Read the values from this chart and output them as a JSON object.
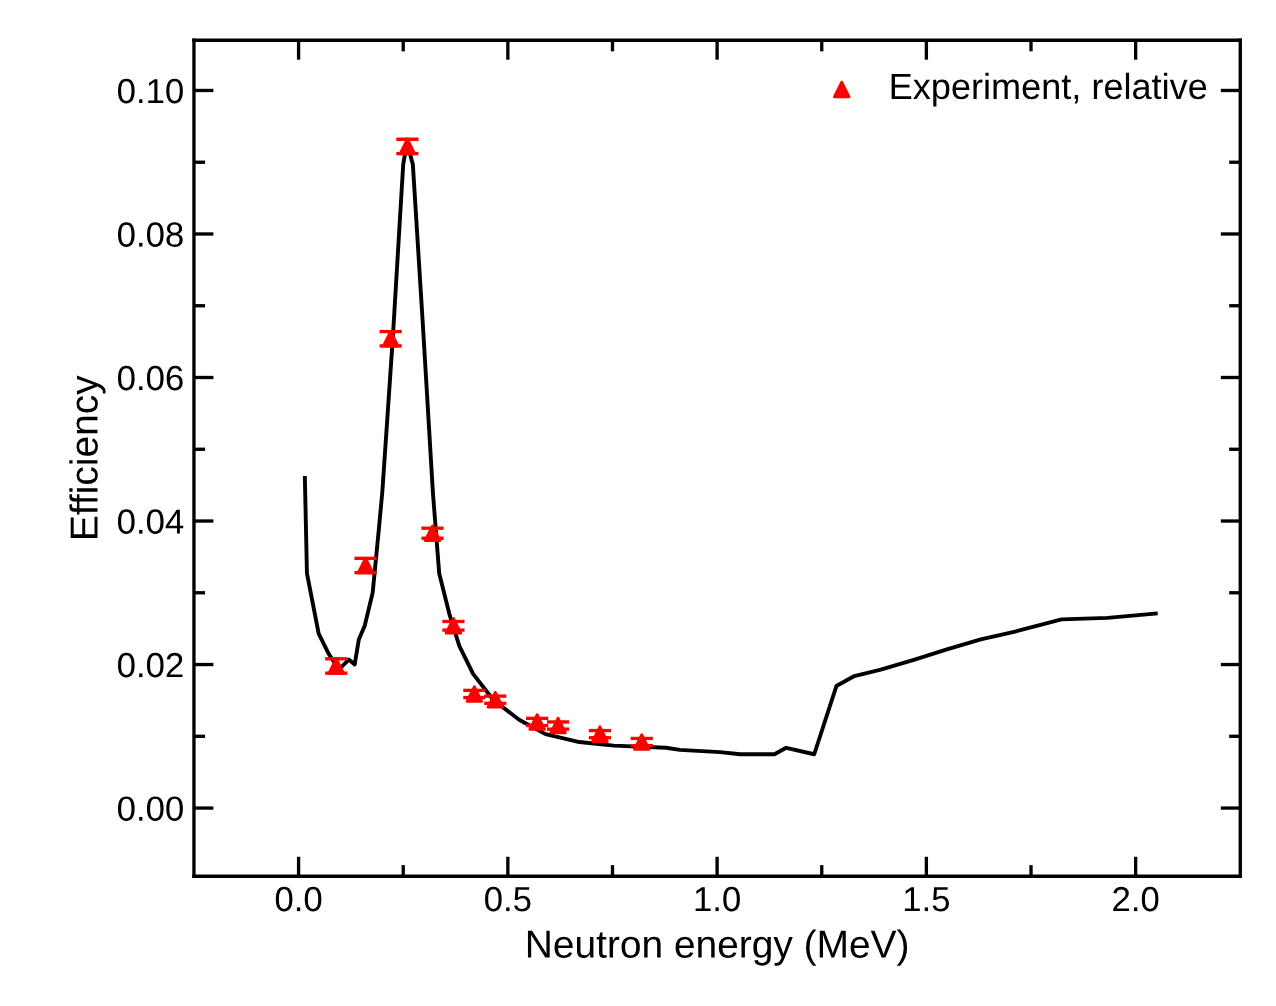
{
  "chart_data": {
    "type": "line",
    "xlabel": "Neutron energy (MeV)",
    "ylabel": "Efficiency",
    "xlim": [
      -0.25,
      2.25
    ],
    "ylim": [
      -0.0095,
      0.107
    ],
    "xticks": [
      {
        "value": 0.0,
        "label": "0.0"
      },
      {
        "value": 0.25,
        "label": null
      },
      {
        "value": 0.5,
        "label": "0.5"
      },
      {
        "value": 0.75,
        "label": null
      },
      {
        "value": 1.0,
        "label": "1.0"
      },
      {
        "value": 1.25,
        "label": null
      },
      {
        "value": 1.5,
        "label": "1.5"
      },
      {
        "value": 1.75,
        "label": null
      },
      {
        "value": 2.0,
        "label": "2.0"
      }
    ],
    "yticks": [
      {
        "value": 0.0,
        "label": "0.00"
      },
      {
        "value": 0.01,
        "label": null
      },
      {
        "value": 0.02,
        "label": "0.02"
      },
      {
        "value": 0.03,
        "label": null
      },
      {
        "value": 0.04,
        "label": "0.04"
      },
      {
        "value": 0.05,
        "label": null
      },
      {
        "value": 0.06,
        "label": "0.06"
      },
      {
        "value": 0.07,
        "label": null
      },
      {
        "value": 0.08,
        "label": "0.08"
      },
      {
        "value": 0.09,
        "label": null
      },
      {
        "value": 0.1,
        "label": "0.10"
      }
    ],
    "legend": "top right",
    "grid": false,
    "series": [
      {
        "color": "#000000",
        "marker": "none",
        "line_style": "solid",
        "x": [
          0.015,
          0.02,
          0.048,
          0.072,
          0.096,
          0.12,
          0.134,
          0.144,
          0.158,
          0.177,
          0.192,
          0.2,
          0.225,
          0.25,
          0.259,
          0.273,
          0.297,
          0.321,
          0.336,
          0.36,
          0.384,
          0.417,
          0.465,
          0.527,
          0.59,
          0.671,
          0.753,
          0.878,
          0.911,
          1.007,
          1.055,
          1.137,
          1.165,
          1.232,
          1.285,
          1.328,
          1.391,
          1.472,
          1.549,
          1.63,
          1.712,
          1.823,
          1.933,
          2.048
        ],
        "values": [
          0.046,
          0.0327,
          0.0243,
          0.0215,
          0.0193,
          0.0207,
          0.02,
          0.0235,
          0.0254,
          0.03,
          0.039,
          0.044,
          0.0654,
          0.0897,
          0.0927,
          0.0897,
          0.0673,
          0.0439,
          0.0327,
          0.0271,
          0.0226,
          0.0187,
          0.0151,
          0.0123,
          0.0103,
          0.0092,
          0.0087,
          0.0084,
          0.0081,
          0.0078,
          0.0075,
          0.0075,
          0.0084,
          0.0075,
          0.017,
          0.0184,
          0.0193,
          0.0207,
          0.0221,
          0.0235,
          0.0246,
          0.0263,
          0.0265,
          0.0271
        ]
      },
      {
        "type": "scatter",
        "name": "Experiment, relative",
        "color": "#ff0000",
        "marker": "triangle",
        "x": [
          0.09,
          0.16,
          0.22,
          0.26,
          0.32,
          0.37,
          0.42,
          0.47,
          0.57,
          0.62,
          0.72,
          0.82
        ],
        "values": [
          0.0198,
          0.0338,
          0.0654,
          0.0922,
          0.0383,
          0.0254,
          0.0159,
          0.0151,
          0.012,
          0.0115,
          0.0103,
          0.0092
        ],
        "errors": [
          0.001,
          0.001,
          0.001,
          0.001,
          0.0007,
          0.0006,
          0.0005,
          0.0005,
          0.0005,
          0.0005,
          0.0005,
          0.0005
        ]
      }
    ]
  }
}
